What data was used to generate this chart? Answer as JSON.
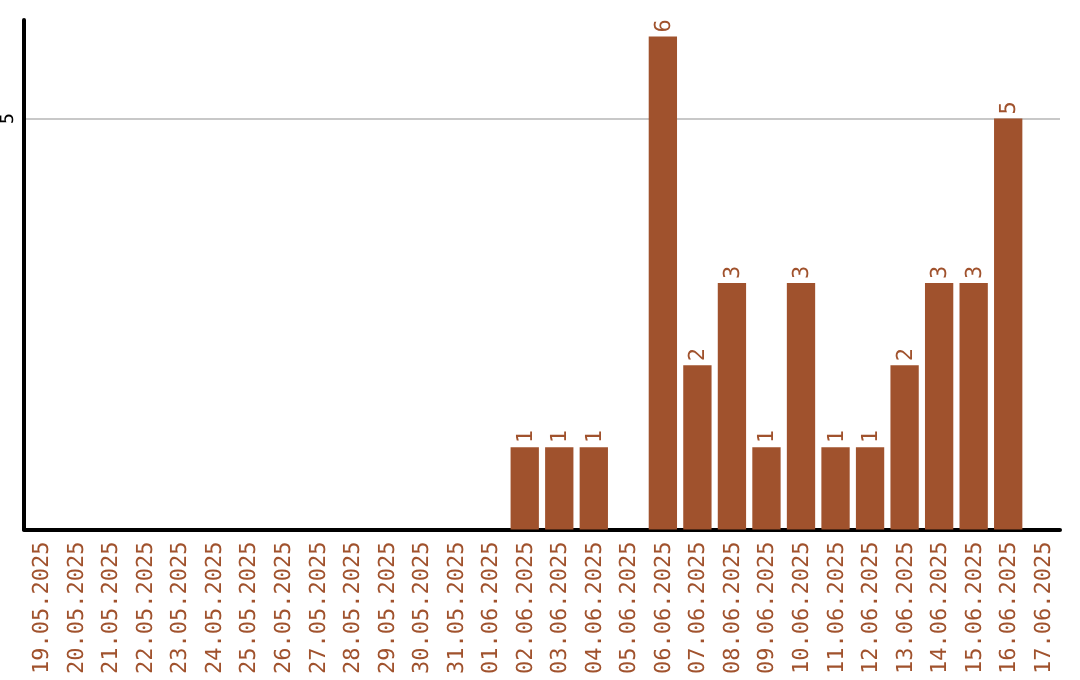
{
  "chart_data": {
    "type": "bar",
    "categories": [
      "19.05.2025",
      "20.05.2025",
      "21.05.2025",
      "22.05.2025",
      "23.05.2025",
      "24.05.2025",
      "25.05.2025",
      "26.05.2025",
      "27.05.2025",
      "28.05.2025",
      "29.05.2025",
      "30.05.2025",
      "31.05.2025",
      "01.06.2025",
      "02.06.2025",
      "03.06.2025",
      "04.06.2025",
      "05.06.2025",
      "06.06.2025",
      "07.06.2025",
      "08.06.2025",
      "09.06.2025",
      "10.06.2025",
      "11.06.2025",
      "12.06.2025",
      "13.06.2025",
      "14.06.2025",
      "15.06.2025",
      "16.06.2025",
      "17.06.2025"
    ],
    "values": [
      null,
      null,
      null,
      null,
      null,
      null,
      null,
      null,
      null,
      null,
      null,
      null,
      null,
      null,
      1,
      1,
      1,
      null,
      6,
      2,
      3,
      1,
      3,
      1,
      1,
      2,
      3,
      3,
      5,
      null
    ],
    "data_labels": true,
    "color": "#a0522d",
    "ylim": [
      0,
      6.2
    ],
    "yticks": [
      5
    ],
    "grid": "y"
  }
}
